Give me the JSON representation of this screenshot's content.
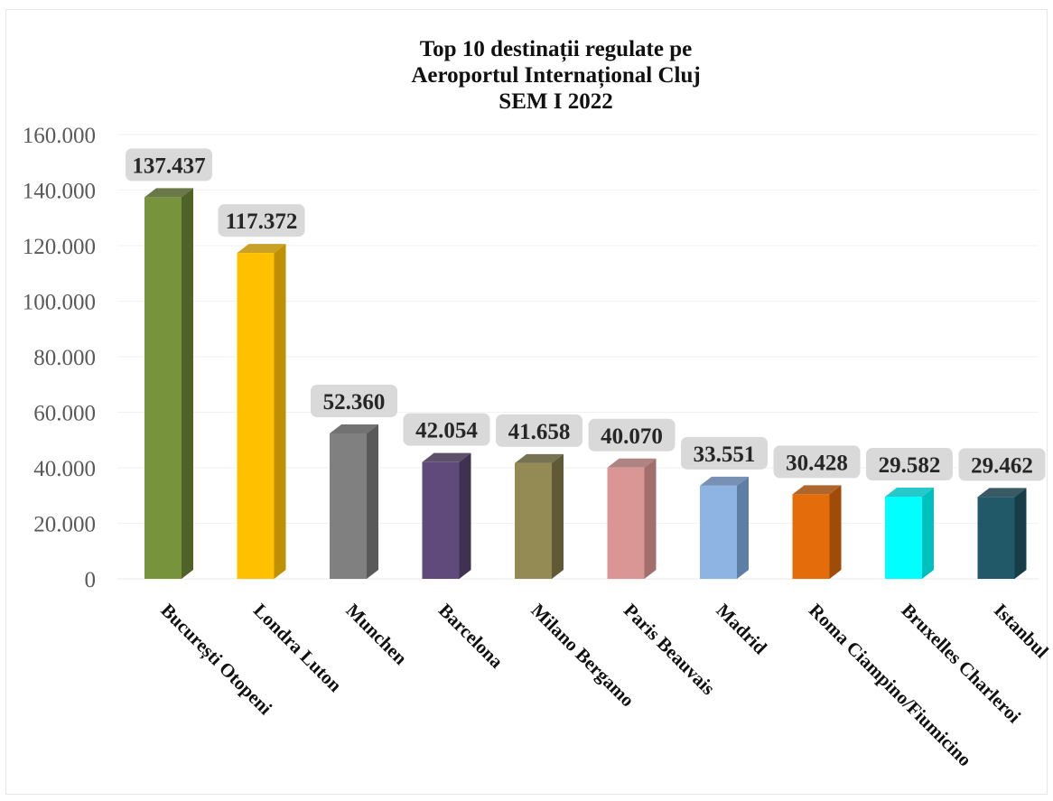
{
  "chart_data": {
    "type": "bar",
    "title_lines": [
      "Top 10 destinații regulate pe",
      "Aeroportul Internațional Cluj",
      "SEM I 2022"
    ],
    "categories": [
      "București Otopeni",
      "Londra Luton",
      "Munchen",
      "Barcelona",
      "Milano Bergamo",
      "Paris Beauvais",
      "Madrid",
      "Roma Ciampino/Fiumicino",
      "Bruxelles Charleroi",
      "Istanbul"
    ],
    "values": [
      137437,
      117372,
      52360,
      42054,
      41658,
      40070,
      33551,
      30428,
      29582,
      29462
    ],
    "value_labels": [
      "137.437",
      "117.372",
      "52.360",
      "42.054",
      "41.658",
      "40.070",
      "33.551",
      "30.428",
      "29.582",
      "29.462"
    ],
    "bar_colors": [
      "#77933c",
      "#ffc000",
      "#808080",
      "#604a7b",
      "#948a54",
      "#d99694",
      "#8eb4e3",
      "#e46c0a",
      "#00ffff",
      "#215968"
    ],
    "bar_side_colors": [
      "#4f6228",
      "#bf9000",
      "#595959",
      "#3f3151",
      "#5f5935",
      "#a26f6d",
      "#5e7ea6",
      "#a04b07",
      "#00bfbf",
      "#163d48"
    ],
    "ylim": [
      0,
      160000
    ],
    "yticks": [
      "0",
      "20.000",
      "40.000",
      "60.000",
      "80.000",
      "100.000",
      "120.000",
      "140.000",
      "160.000"
    ],
    "xlabel": "",
    "ylabel": "",
    "grid": true,
    "legend": "none"
  }
}
